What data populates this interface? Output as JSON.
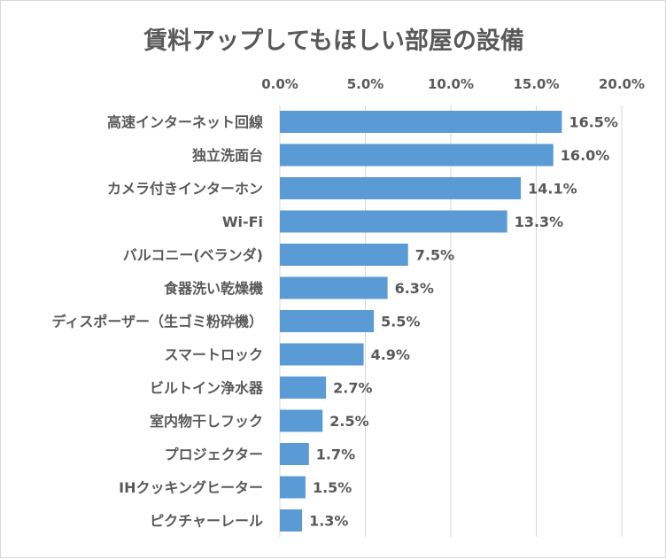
{
  "chart_data": {
    "type": "bar",
    "orientation": "horizontal",
    "title": "賃料アップしてもほしい部屋の設備",
    "xlabel": "",
    "ylabel": "",
    "xlim": [
      0,
      20
    ],
    "x_ticks": [
      "0.0%",
      "5.0%",
      "10.0%",
      "15.0%",
      "20.0%"
    ],
    "x_tick_values": [
      0,
      5,
      10,
      15,
      20
    ],
    "grid": true,
    "categories": [
      "高速インターネット回線",
      "独立洗面台",
      "カメラ付きインターホン",
      "Wi-Fi",
      "バルコニー(ベランダ)",
      "食器洗い乾燥機",
      "ディスポーザー（生ゴミ粉砕機）",
      "スマートロック",
      "ビルトイン浄水器",
      "室内物干しフック",
      "プロジェクター",
      "IHクッキングヒーター",
      "ピクチャーレール"
    ],
    "values": [
      16.5,
      16.0,
      14.1,
      13.3,
      7.5,
      6.3,
      5.5,
      4.9,
      2.7,
      2.5,
      1.7,
      1.5,
      1.3
    ],
    "data_labels": [
      "16.5%",
      "16.0%",
      "14.1%",
      "13.3%",
      "7.5%",
      "6.3%",
      "5.5%",
      "4.9%",
      "2.7%",
      "2.5%",
      "1.7%",
      "1.5%",
      "1.3%"
    ],
    "colors": {
      "bar": "#5b9bd5",
      "text": "#595959",
      "grid": "#d9d9d9"
    }
  }
}
